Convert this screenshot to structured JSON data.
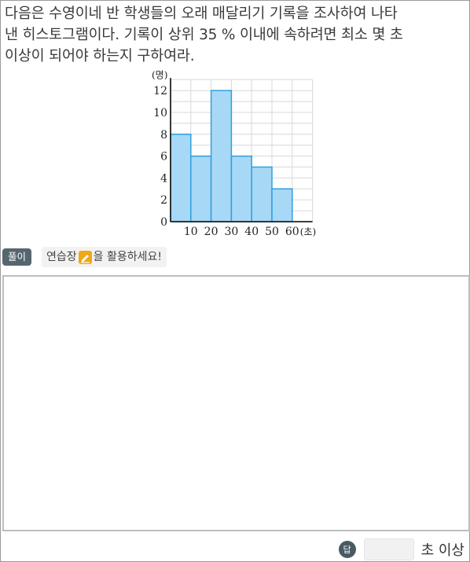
{
  "question": {
    "line1": "다음은 수영이네 반 학생들의 오래 매달리기 기록을 조사하여 나타",
    "line2": "낸 히스토그램이다. 기록이 상위 35 % 이내에 속하려면 최소 몇 초",
    "line3": "이상이 되어야 하는지 구하여라."
  },
  "chart_data": {
    "type": "bar",
    "subtype": "histogram",
    "bins": [
      [
        0,
        10
      ],
      [
        10,
        20
      ],
      [
        20,
        30
      ],
      [
        30,
        40
      ],
      [
        40,
        50
      ],
      [
        50,
        60
      ]
    ],
    "values": [
      8,
      6,
      12,
      6,
      5,
      3
    ],
    "x_ticks": [
      10,
      20,
      30,
      40,
      50,
      60
    ],
    "y_ticks": [
      0,
      2,
      4,
      6,
      8,
      10,
      12
    ],
    "xlabel": "(초)",
    "ylabel": "(명)",
    "xlim": [
      0,
      70
    ],
    "ylim": [
      0,
      13
    ],
    "grid": true,
    "colors": {
      "bar_fill": "#a7d8f6",
      "bar_stroke": "#2f9fe0",
      "grid": "#d8d8d8",
      "axis": "#222222"
    }
  },
  "solution": {
    "badge": "풀이",
    "hint_before": "연습장",
    "hint_icon": "pencil-icon",
    "hint_after": "을 활용하세요!"
  },
  "answer": {
    "badge": "답",
    "value": "",
    "unit": "초 이상"
  }
}
